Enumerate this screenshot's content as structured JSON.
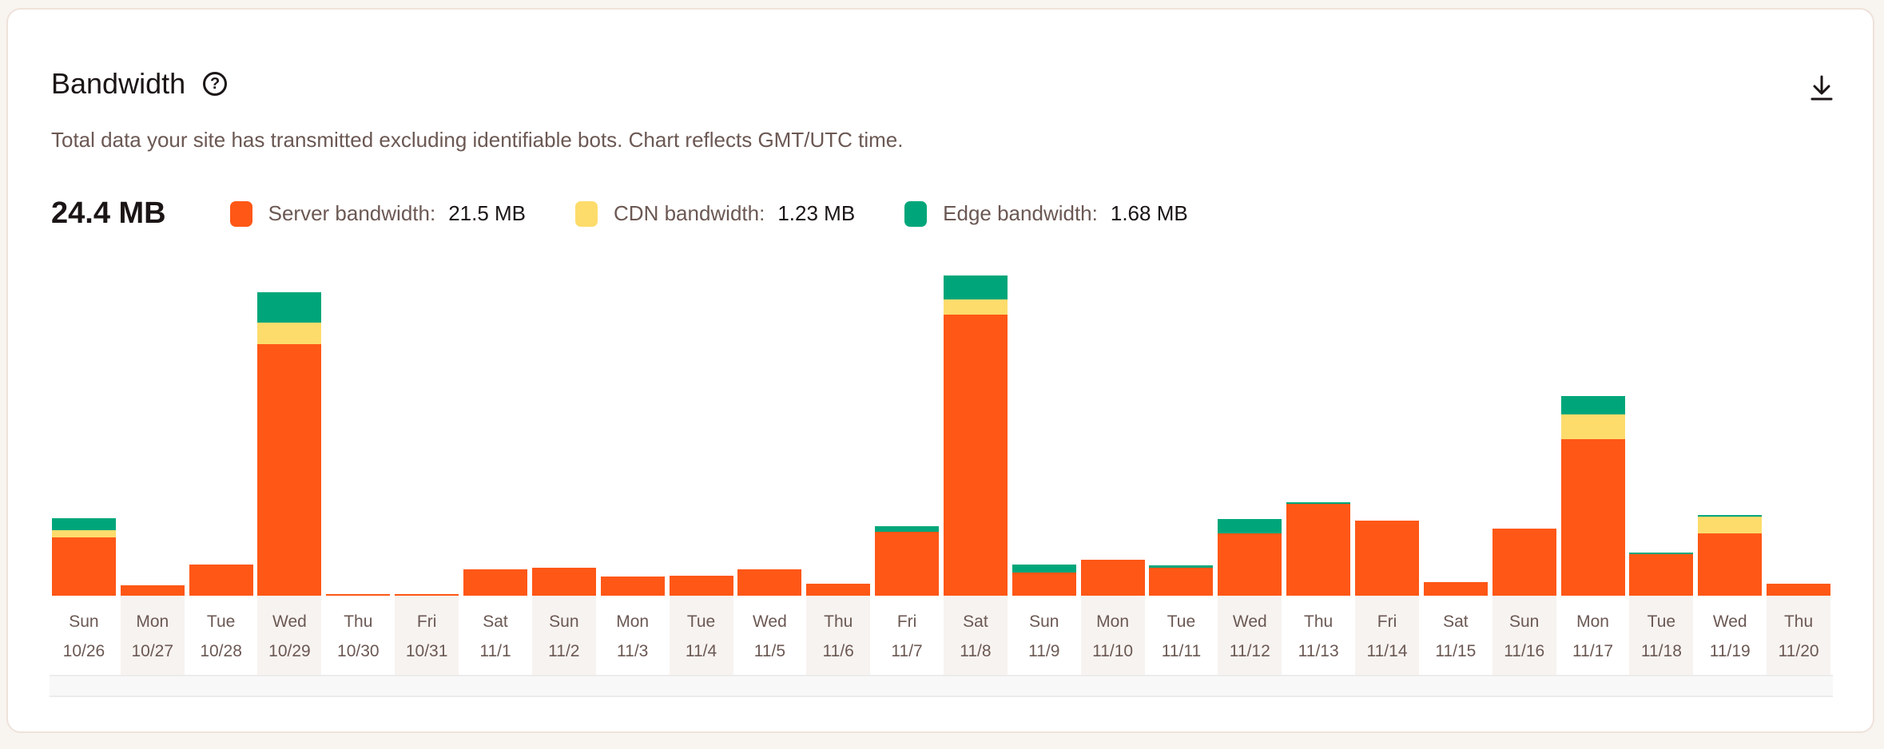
{
  "header": {
    "title": "Bandwidth",
    "help_icon": "question-circle-icon",
    "download_icon": "download-icon",
    "subtitle": "Total data your site has transmitted excluding identifiable bots. Chart reflects GMT/UTC time."
  },
  "summary": {
    "total": "24.4 MB",
    "legend": [
      {
        "label": "Server bandwidth:",
        "value": "21.5 MB",
        "color": "#ff5716"
      },
      {
        "label": "CDN bandwidth:",
        "value": "1.23 MB",
        "color": "#fddc6c"
      },
      {
        "label": "Edge bandwidth:",
        "value": "1.68 MB",
        "color": "#00a67a"
      }
    ]
  },
  "chart_data": {
    "type": "bar",
    "stacked": true,
    "unit": "MB",
    "ylim": [
      0,
      5.1
    ],
    "grid": false,
    "days": [
      "Sun",
      "Mon",
      "Tue",
      "Wed",
      "Thu",
      "Fri",
      "Sat",
      "Sun",
      "Mon",
      "Tue",
      "Wed",
      "Thu",
      "Fri",
      "Sat",
      "Sun",
      "Mon",
      "Tue",
      "Wed",
      "Thu",
      "Fri",
      "Sat",
      "Sun",
      "Mon",
      "Tue",
      "Wed",
      "Thu"
    ],
    "categories": [
      "10/26",
      "10/27",
      "10/28",
      "10/29",
      "10/30",
      "10/31",
      "11/1",
      "11/2",
      "11/3",
      "11/4",
      "11/5",
      "11/6",
      "11/7",
      "11/8",
      "11/9",
      "11/10",
      "11/11",
      "11/12",
      "11/13",
      "11/14",
      "11/15",
      "11/16",
      "11/17",
      "11/18",
      "11/19",
      "11/20"
    ],
    "series": [
      {
        "name": "Server bandwidth",
        "color": "#ff5716",
        "values": [
          0.84,
          0.15,
          0.45,
          3.6,
          0.02,
          0.02,
          0.38,
          0.4,
          0.28,
          0.29,
          0.38,
          0.17,
          0.91,
          4.03,
          0.33,
          0.52,
          0.4,
          0.89,
          1.31,
          1.07,
          0.19,
          0.96,
          2.24,
          0.6,
          0.89,
          0.17
        ]
      },
      {
        "name": "CDN bandwidth",
        "color": "#fddc6c",
        "values": [
          0.1,
          0,
          0,
          0.31,
          0,
          0,
          0,
          0,
          0,
          0,
          0,
          0,
          0,
          0.21,
          0,
          0,
          0,
          0,
          0,
          0,
          0,
          0,
          0.36,
          0,
          0.24,
          0
        ]
      },
      {
        "name": "Edge bandwidth",
        "color": "#00a67a",
        "values": [
          0.17,
          0,
          0,
          0.43,
          0,
          0,
          0,
          0,
          0,
          0,
          0,
          0,
          0.09,
          0.34,
          0.12,
          0,
          0.03,
          0.21,
          0.02,
          0,
          0,
          0,
          0.26,
          0.02,
          0.03,
          0
        ]
      }
    ]
  }
}
